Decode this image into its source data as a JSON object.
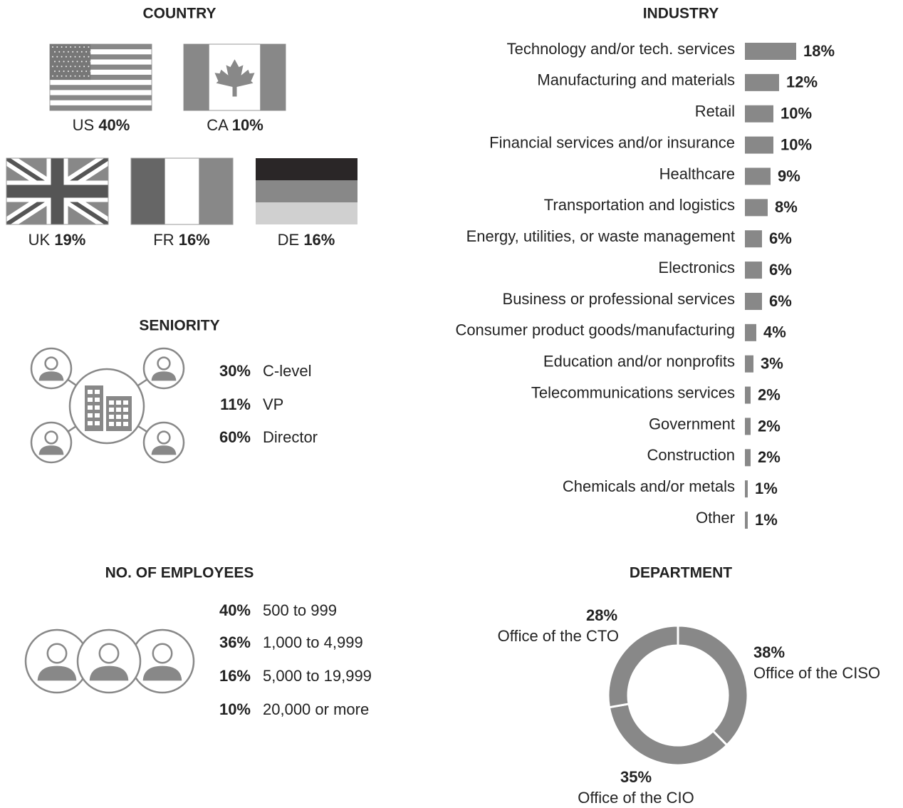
{
  "chart_data": [
    {
      "type": "flags",
      "title": "COUNTRY",
      "categories": [
        "US",
        "CA",
        "UK",
        "FR",
        "DE"
      ],
      "values": [
        40,
        10,
        19,
        16,
        16
      ],
      "value_labels": [
        "40%",
        "10%",
        "19%",
        "16%",
        "16%"
      ]
    },
    {
      "type": "bar",
      "title": "INDUSTRY",
      "color": "#888888",
      "categories": [
        "Technology and/or tech. services",
        "Manufacturing and materials",
        "Retail",
        "Financial services and/or insurance",
        "Healthcare",
        "Transportation and logistics",
        "Energy, utilities, or waste management",
        "Electronics",
        "Business or professional services",
        "Consumer product goods/manufacturing",
        "Education and/or nonprofits",
        "Telecommunications services",
        "Government",
        "Construction",
        "Chemicals and/or metals",
        "Other"
      ],
      "values": [
        18,
        12,
        10,
        10,
        9,
        8,
        6,
        6,
        6,
        4,
        3,
        2,
        2,
        2,
        1,
        1
      ],
      "value_labels": [
        "18%",
        "12%",
        "10%",
        "10%",
        "9%",
        "8%",
        "6%",
        "6%",
        "6%",
        "4%",
        "3%",
        "2%",
        "2%",
        "2%",
        "1%",
        "1%"
      ]
    },
    {
      "type": "list",
      "title": "SENIORITY",
      "categories": [
        "C-level",
        "VP",
        "Director"
      ],
      "values": [
        30,
        11,
        60
      ],
      "value_labels": [
        "30%",
        "11%",
        "60%"
      ]
    },
    {
      "type": "list",
      "title": "NO. OF EMPLOYEES",
      "categories": [
        "500 to 999",
        "1,000 to 4,999",
        "5,000 to 19,999",
        "20,000 or more"
      ],
      "values": [
        40,
        36,
        16,
        10
      ],
      "value_labels": [
        "40%",
        "36%",
        "16%",
        "10%"
      ]
    },
    {
      "type": "donut",
      "title": "DEPARTMENT",
      "color": "#888888",
      "categories": [
        "Office of the CISO",
        "Office of the CIO",
        "Office of the CTO"
      ],
      "values": [
        38,
        35,
        28
      ],
      "value_labels": [
        "38%",
        "35%",
        "28%"
      ]
    }
  ]
}
